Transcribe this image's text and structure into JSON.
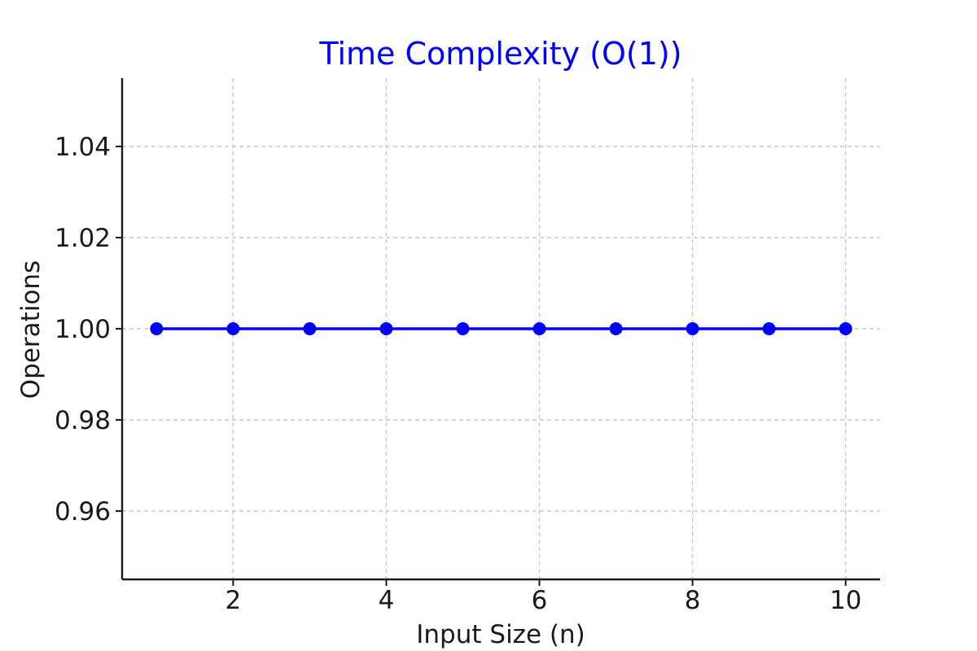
{
  "chart_data": {
    "type": "line",
    "title": "Time Complexity (O(1))",
    "xlabel": "Input Size (n)",
    "ylabel": "Operations",
    "x": [
      1,
      2,
      3,
      4,
      5,
      6,
      7,
      8,
      9,
      10
    ],
    "series": [
      {
        "values": [
          1,
          1,
          1,
          1,
          1,
          1,
          1,
          1,
          1,
          1
        ],
        "color": "#0000ff",
        "marker": "circle"
      }
    ],
    "xticks": [
      "2",
      "4",
      "6",
      "8",
      "10"
    ],
    "yticks": [
      "0.96",
      "0.98",
      "1.00",
      "1.02",
      "1.04"
    ],
    "xlim": [
      0.55,
      10.45
    ],
    "ylim": [
      0.945,
      1.055
    ],
    "grid": true,
    "title_color": "#0000ff"
  }
}
